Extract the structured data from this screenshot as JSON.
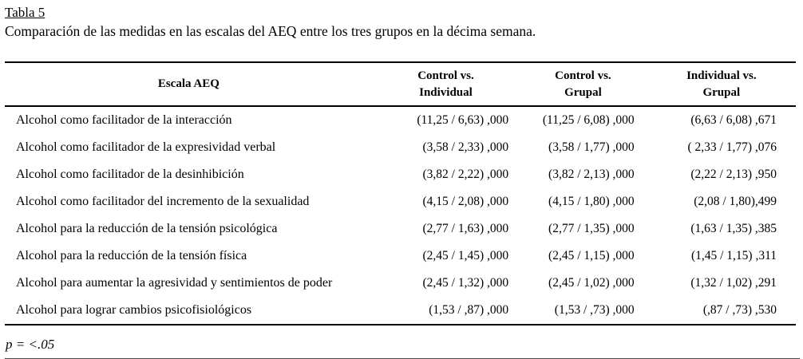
{
  "title": "Tabla 5",
  "caption": "Comparación de las medidas en las escalas del AEQ entre los tres grupos en la décima semana.",
  "footnote": "p = <.05",
  "colors": {
    "text": "#000000",
    "background": "#ffffff",
    "table_rule": "#000000",
    "bottom_rule": "#4a4a4a"
  },
  "table": {
    "col_header_label": "Escala AEQ",
    "columns": [
      {
        "line1": "Control vs.",
        "line2": "Individual"
      },
      {
        "line1": "Control vs.",
        "line2": "Grupal"
      },
      {
        "line1": "Individual vs.",
        "line2": "Grupal"
      }
    ],
    "rows": [
      {
        "label": "Alcohol como facilitador de la interacción",
        "values": [
          "(11,25 / 6,63) ,000",
          "(11,25 / 6,08) ,000",
          "(6,63 / 6,08) ,671"
        ]
      },
      {
        "label": "Alcohol como facilitador de la expresividad verbal",
        "values": [
          "(3,58 / 2,33) ,000",
          "(3,58 / 1,77) ,000",
          "( 2,33 / 1,77) ,076"
        ]
      },
      {
        "label": "Alcohol como facilitador de la desinhibición",
        "values": [
          "(3,82 / 2,22) ,000",
          "(3,82 / 2,13) ,000",
          "(2,22 / 2,13) ,950"
        ]
      },
      {
        "label": "Alcohol como facilitador del incremento de la sexualidad",
        "values": [
          "(4,15 / 2,08) ,000",
          "(4,15 / 1,80) ,000",
          "(2,08 / 1,80),499"
        ]
      },
      {
        "label": "Alcohol para la reducción de la tensión psicológica",
        "values": [
          "(2,77 / 1,63) ,000",
          "(2,77 / 1,35) ,000",
          "(1,63 / 1,35) ,385"
        ]
      },
      {
        "label": "Alcohol para la reducción de la tensión física",
        "values": [
          "(2,45 / 1,45) ,000",
          "(2,45 / 1,15) ,000",
          "(1,45 / 1,15) ,311"
        ]
      },
      {
        "label": "Alcohol para aumentar la agresividad y sentimientos de poder",
        "values": [
          "(2,45 / 1,32) ,000",
          "(2,45 / 1,02) ,000",
          "(1,32 / 1,02) ,291"
        ]
      },
      {
        "label": "Alcohol para lograr cambios psicofisiológicos",
        "values": [
          "(1,53 / ,87) ,000",
          "(1,53 / ,73) ,000",
          "(,87 / ,73) ,530"
        ]
      }
    ]
  }
}
